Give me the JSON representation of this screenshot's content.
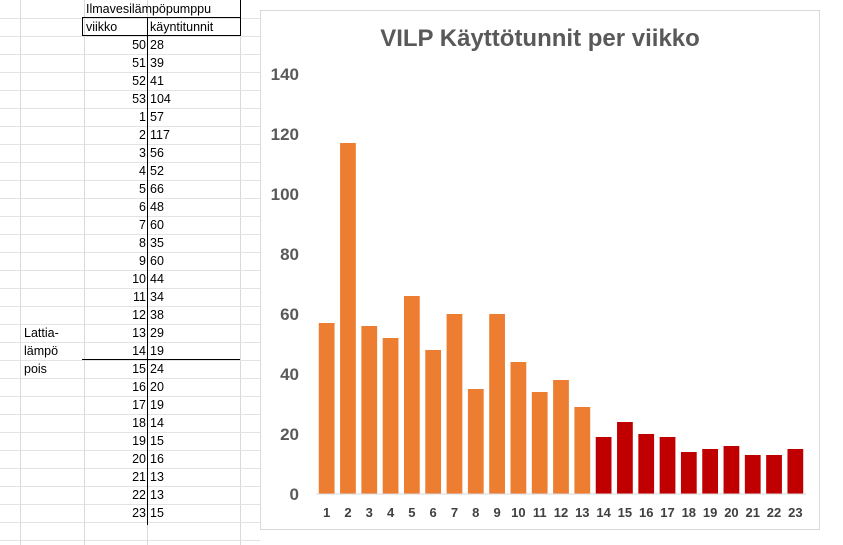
{
  "sheet": {
    "header_title": "Ilmavesilämpöpumppu",
    "col_week": "viikko",
    "col_hours": "käyntitunnit",
    "note_lines": [
      "Lattia-",
      "lämpö",
      "pois"
    ],
    "rows": [
      {
        "week": "50",
        "hours": "28"
      },
      {
        "week": "51",
        "hours": "39"
      },
      {
        "week": "52",
        "hours": "41"
      },
      {
        "week": "53",
        "hours": "104"
      },
      {
        "week": "1",
        "hours": "57"
      },
      {
        "week": "2",
        "hours": "117"
      },
      {
        "week": "3",
        "hours": "56"
      },
      {
        "week": "4",
        "hours": "52"
      },
      {
        "week": "5",
        "hours": "66"
      },
      {
        "week": "6",
        "hours": "48"
      },
      {
        "week": "7",
        "hours": "60"
      },
      {
        "week": "8",
        "hours": "35"
      },
      {
        "week": "9",
        "hours": "60"
      },
      {
        "week": "10",
        "hours": "44"
      },
      {
        "week": "11",
        "hours": "34"
      },
      {
        "week": "12",
        "hours": "38"
      },
      {
        "week": "13",
        "hours": "29"
      },
      {
        "week": "14",
        "hours": "19"
      },
      {
        "week": "15",
        "hours": "24"
      },
      {
        "week": "16",
        "hours": "20"
      },
      {
        "week": "17",
        "hours": "19"
      },
      {
        "week": "18",
        "hours": "14"
      },
      {
        "week": "19",
        "hours": "15"
      },
      {
        "week": "20",
        "hours": "16"
      },
      {
        "week": "21",
        "hours": "13"
      },
      {
        "week": "22",
        "hours": "13"
      },
      {
        "week": "23",
        "hours": "15"
      }
    ]
  },
  "chart_data": {
    "type": "bar",
    "title": "VILP Käyttötunnit per viikko",
    "xlabel": "",
    "ylabel": "",
    "ylim": [
      0,
      140
    ],
    "yticks": [
      0,
      20,
      40,
      60,
      80,
      100,
      120,
      140
    ],
    "grid": false,
    "legend": "none",
    "categories": [
      "1",
      "2",
      "3",
      "4",
      "5",
      "6",
      "7",
      "8",
      "9",
      "10",
      "11",
      "12",
      "13",
      "14",
      "15",
      "16",
      "17",
      "18",
      "19",
      "20",
      "21",
      "22",
      "23"
    ],
    "values": [
      57,
      117,
      56,
      52,
      66,
      48,
      60,
      35,
      60,
      44,
      34,
      38,
      29,
      19,
      24,
      20,
      19,
      14,
      15,
      16,
      13,
      13,
      15
    ],
    "colors": [
      "#ED7D31",
      "#ED7D31",
      "#ED7D31",
      "#ED7D31",
      "#ED7D31",
      "#ED7D31",
      "#ED7D31",
      "#ED7D31",
      "#ED7D31",
      "#ED7D31",
      "#ED7D31",
      "#ED7D31",
      "#ED7D31",
      "#C00000",
      "#C00000",
      "#C00000",
      "#C00000",
      "#C00000",
      "#C00000",
      "#C00000",
      "#C00000",
      "#C00000",
      "#C00000"
    ]
  }
}
